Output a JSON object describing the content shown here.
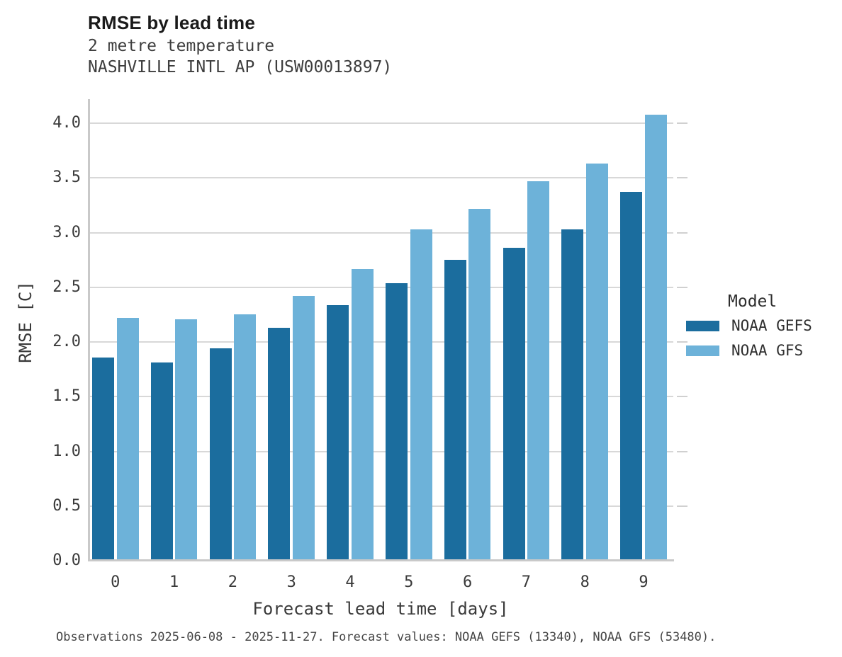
{
  "header": {
    "title": "RMSE by lead time",
    "subtitle_line1": "2 metre temperature",
    "subtitle_line2": "NASHVILLE INTL AP (USW00013897)"
  },
  "legend": {
    "title": "Model"
  },
  "caption": {
    "text": "Observations 2025-06-08 - 2025-11-27. Forecast values: NOAA GEFS (13340), NOAA GFS (53480)."
  },
  "chart_data": {
    "type": "bar",
    "title": "RMSE by lead time",
    "subtitle": "2 metre temperature",
    "station": "NASHVILLE INTL AP (USW00013897)",
    "xlabel": "Forecast lead time [days]",
    "ylabel": "RMSE [C]",
    "categories": [
      "0",
      "1",
      "2",
      "3",
      "4",
      "5",
      "6",
      "7",
      "8",
      "9"
    ],
    "series": [
      {
        "name": "NOAA GEFS",
        "color": "#1b6d9e",
        "values": [
          1.86,
          1.81,
          1.94,
          2.13,
          2.34,
          2.54,
          2.75,
          2.86,
          3.03,
          3.37
        ]
      },
      {
        "name": "NOAA GFS",
        "color": "#6db2d9",
        "values": [
          2.22,
          2.21,
          2.25,
          2.42,
          2.67,
          3.03,
          3.22,
          3.47,
          3.63,
          4.08
        ]
      }
    ],
    "ylim": [
      0,
      4.2
    ],
    "yticks": [
      0.0,
      0.5,
      1.0,
      1.5,
      2.0,
      2.5,
      3.0,
      3.5,
      4.0
    ],
    "grid": "horizontal",
    "legend_position": "right",
    "legend_title": "Model",
    "colors": {
      "gridline": "#d8d8d8",
      "axis": "#c9c9c9",
      "text": "#3a3a3a"
    }
  }
}
